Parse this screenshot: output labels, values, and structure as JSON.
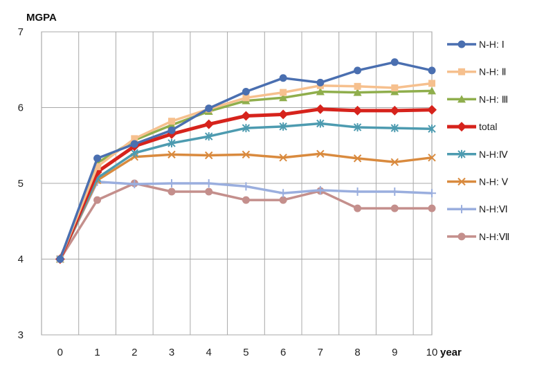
{
  "chart_data": {
    "type": "line",
    "title": "",
    "xlabel": "year",
    "ylabel": "MGPA",
    "x": [
      0,
      1,
      2,
      3,
      4,
      5,
      6,
      7,
      8,
      9,
      10
    ],
    "x_ticks": [
      "0",
      "1",
      "2",
      "3",
      "4",
      "5",
      "6",
      "7",
      "8",
      "9",
      "10"
    ],
    "ylim": [
      3,
      7
    ],
    "y_ticks": [
      "3",
      "4",
      "5",
      "6",
      "7"
    ],
    "grid": true,
    "legend_position": "right",
    "series": [
      {
        "name": "N-H: Ⅰ",
        "color": "#4a6fb0",
        "marker": "circle",
        "values": [
          4.0,
          5.33,
          5.52,
          5.7,
          5.99,
          6.21,
          6.39,
          6.33,
          6.49,
          6.6,
          6.49
        ]
      },
      {
        "name": "N-H: Ⅱ",
        "color": "#f6c08e",
        "marker": "square",
        "values": [
          4.0,
          5.22,
          5.59,
          5.82,
          5.98,
          6.13,
          6.2,
          6.29,
          6.28,
          6.26,
          6.32
        ]
      },
      {
        "name": "N-H: Ⅲ",
        "color": "#8fae4c",
        "marker": "triangle",
        "values": [
          4.0,
          5.27,
          5.57,
          5.77,
          5.95,
          6.09,
          6.13,
          6.21,
          6.2,
          6.21,
          6.22
        ]
      },
      {
        "name": "total",
        "color": "#d6231c",
        "marker": "diamond",
        "values": [
          4.0,
          5.15,
          5.49,
          5.65,
          5.78,
          5.89,
          5.91,
          5.98,
          5.96,
          5.96,
          5.97
        ]
      },
      {
        "name": "N-H:Ⅳ",
        "color": "#4d9bb0",
        "marker": "asterisk",
        "values": [
          4.0,
          5.07,
          5.4,
          5.53,
          5.62,
          5.73,
          5.75,
          5.79,
          5.74,
          5.73,
          5.72
        ]
      },
      {
        "name": "N-H: Ⅴ",
        "color": "#d98a3e",
        "marker": "x",
        "values": [
          4.0,
          5.04,
          5.35,
          5.38,
          5.37,
          5.38,
          5.34,
          5.39,
          5.33,
          5.28,
          5.34
        ]
      },
      {
        "name": "N-H:Ⅵ",
        "color": "#9aaede",
        "marker": "plus",
        "values": [
          4.0,
          5.02,
          4.99,
          5.0,
          5.0,
          4.96,
          4.87,
          4.91,
          4.89,
          4.89,
          4.87
        ]
      },
      {
        "name": "N-H:Ⅶ",
        "color": "#c48f8c",
        "marker": "circle",
        "values": [
          4.0,
          4.78,
          5.0,
          4.89,
          4.89,
          4.78,
          4.78,
          4.9,
          4.67,
          4.67,
          4.67
        ]
      }
    ]
  }
}
